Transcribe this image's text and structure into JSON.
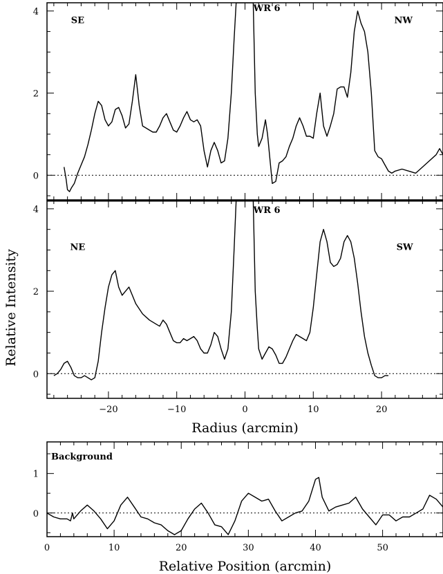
{
  "chart_data": [
    {
      "type": "line",
      "id": "top",
      "xlim": [
        -29,
        29
      ],
      "ylim": [
        -0.6,
        4.2
      ],
      "yticks_major": [
        0,
        2,
        4
      ],
      "xticks_labeled": false,
      "zero_line": true,
      "annotations": [
        {
          "text": "SE",
          "x": -24.5,
          "y": 3.7
        },
        {
          "text": "WR 6",
          "x": 3.2,
          "y": 4.0
        },
        {
          "text": "NW",
          "x": 23.2,
          "y": 3.7
        }
      ],
      "series": [
        {
          "x": [
            -26.5,
            -26.2,
            -26.0,
            -25.7,
            -25.4,
            -25.0,
            -24.5,
            -24.0,
            -23.5,
            -23.0,
            -22.5,
            -22.0,
            -21.5,
            -21.0,
            -20.5,
            -20.0,
            -19.5,
            -19.0,
            -18.5,
            -18.0,
            -17.5,
            -17.0,
            -16.5,
            -16.0,
            -15.5,
            -15.0,
            -14.5,
            -14.0,
            -13.5,
            -13.0,
            -12.5,
            -12.0,
            -11.5,
            -11.0,
            -10.5,
            -10.0,
            -9.5,
            -9.0,
            -8.5,
            -8.0,
            -7.5,
            -7.0,
            -6.5,
            -6.0,
            -5.5,
            -5.0,
            -4.5,
            -4.0,
            -3.5,
            -3.0,
            -2.5,
            -2.0,
            -1.6,
            -1.3,
            -1.0,
            -0.8,
            -0.6,
            1.0,
            1.2,
            1.5,
            1.8,
            2.0,
            2.5,
            3.0,
            3.3,
            3.7,
            4.0,
            4.5,
            5.0,
            5.5,
            6.0,
            6.5,
            7.0,
            7.5,
            8.0,
            8.5,
            9.0,
            9.5,
            10.0,
            10.5,
            11.0,
            11.5,
            12.0,
            12.5,
            13.0,
            13.5,
            14.0,
            14.5,
            15.0,
            15.5,
            16.0,
            16.5,
            17.0,
            17.5,
            18.0,
            18.5,
            19.0,
            19.5,
            20.0,
            20.5,
            21.0,
            21.5,
            22.0,
            23.0,
            24.0,
            25.0,
            26.0,
            27.0,
            28.0,
            28.5,
            29.0
          ],
          "values": [
            0.2,
            -0.1,
            -0.35,
            -0.4,
            -0.3,
            -0.2,
            0.05,
            0.25,
            0.45,
            0.75,
            1.1,
            1.5,
            1.8,
            1.7,
            1.35,
            1.2,
            1.3,
            1.6,
            1.65,
            1.45,
            1.15,
            1.25,
            1.8,
            2.45,
            1.7,
            1.2,
            1.15,
            1.1,
            1.05,
            1.05,
            1.2,
            1.4,
            1.5,
            1.3,
            1.1,
            1.05,
            1.2,
            1.4,
            1.55,
            1.35,
            1.3,
            1.35,
            1.2,
            0.6,
            0.2,
            0.6,
            0.8,
            0.6,
            0.3,
            0.35,
            0.9,
            2.0,
            3.3,
            4.2,
            4.2,
            4.2,
            4.2,
            4.2,
            4.2,
            2.0,
            1.0,
            0.7,
            0.9,
            1.35,
            1.0,
            0.3,
            -0.2,
            -0.15,
            0.3,
            0.35,
            0.45,
            0.7,
            0.9,
            1.2,
            1.4,
            1.2,
            0.95,
            0.95,
            0.9,
            1.5,
            2.0,
            1.2,
            0.95,
            1.2,
            1.5,
            2.1,
            2.15,
            2.15,
            1.9,
            2.5,
            3.5,
            4.0,
            3.7,
            3.5,
            3.0,
            2.0,
            0.6,
            0.45,
            0.4,
            0.25,
            0.1,
            0.05,
            0.1,
            0.15,
            0.1,
            0.05,
            0.2,
            0.35,
            0.5,
            0.65,
            0.5
          ]
        }
      ]
    },
    {
      "type": "line",
      "id": "middle",
      "xlim": [
        -29,
        29
      ],
      "ylim": [
        -0.6,
        4.2
      ],
      "xticks": [
        -20,
        -10,
        0,
        10,
        20
      ],
      "yticks_major": [
        0,
        2,
        4
      ],
      "xticks_labeled": true,
      "zero_line": true,
      "xlabel": "Radius (arcmin)",
      "annotations": [
        {
          "text": "NE",
          "x": -24.5,
          "y": 3.0
        },
        {
          "text": "WR 6",
          "x": 3.2,
          "y": 3.9
        },
        {
          "text": "SW",
          "x": 23.4,
          "y": 3.0
        }
      ],
      "series": [
        {
          "x": [
            -28.0,
            -27.5,
            -27.0,
            -26.5,
            -26.0,
            -25.5,
            -25.0,
            -24.5,
            -24.0,
            -23.5,
            -23.0,
            -22.5,
            -22.0,
            -21.5,
            -21.0,
            -20.5,
            -20.0,
            -19.5,
            -19.0,
            -18.5,
            -18.0,
            -17.5,
            -17.0,
            -16.5,
            -16.0,
            -15.0,
            -14.0,
            -13.0,
            -12.5,
            -12.0,
            -11.5,
            -11.0,
            -10.5,
            -10.0,
            -9.5,
            -9.0,
            -8.5,
            -8.0,
            -7.5,
            -7.0,
            -6.5,
            -6.0,
            -5.5,
            -5.0,
            -4.5,
            -4.0,
            -3.5,
            -3.0,
            -2.5,
            -2.0,
            -1.6,
            -1.3,
            -1.0,
            -0.8,
            -0.6,
            1.0,
            1.2,
            1.5,
            1.8,
            2.0,
            2.5,
            3.0,
            3.5,
            4.0,
            4.5,
            5.0,
            5.5,
            6.0,
            6.5,
            7.0,
            7.5,
            8.0,
            8.5,
            9.0,
            9.5,
            10.0,
            10.5,
            11.0,
            11.5,
            12.0,
            12.5,
            13.0,
            13.5,
            14.0,
            14.5,
            15.0,
            15.5,
            16.0,
            16.5,
            17.0,
            17.5,
            18.0,
            18.5,
            19.0,
            19.5,
            20.0,
            20.5,
            21.0
          ],
          "values": [
            -0.05,
            0.0,
            0.1,
            0.25,
            0.3,
            0.15,
            -0.05,
            -0.1,
            -0.1,
            -0.05,
            -0.1,
            -0.15,
            -0.1,
            0.3,
            1.0,
            1.6,
            2.1,
            2.4,
            2.5,
            2.1,
            1.9,
            2.0,
            2.1,
            1.9,
            1.7,
            1.45,
            1.3,
            1.2,
            1.15,
            1.3,
            1.2,
            1.0,
            0.8,
            0.75,
            0.75,
            0.85,
            0.8,
            0.85,
            0.9,
            0.8,
            0.6,
            0.5,
            0.5,
            0.7,
            1.0,
            0.9,
            0.6,
            0.35,
            0.6,
            1.5,
            3.0,
            4.2,
            4.2,
            4.2,
            4.2,
            4.2,
            4.2,
            2.0,
            1.1,
            0.6,
            0.35,
            0.5,
            0.65,
            0.6,
            0.45,
            0.25,
            0.25,
            0.4,
            0.6,
            0.8,
            0.95,
            0.9,
            0.85,
            0.8,
            1.0,
            1.6,
            2.4,
            3.2,
            3.5,
            3.2,
            2.7,
            2.6,
            2.65,
            2.8,
            3.2,
            3.35,
            3.2,
            2.8,
            2.2,
            1.5,
            0.9,
            0.5,
            0.2,
            -0.05,
            -0.1,
            -0.1,
            -0.05,
            -0.05
          ]
        }
      ]
    },
    {
      "type": "line",
      "id": "bottom",
      "xlim": [
        0,
        59
      ],
      "ylim": [
        -0.6,
        1.8
      ],
      "xticks": [
        0,
        10,
        20,
        30,
        40,
        50
      ],
      "yticks_major": [
        0,
        1
      ],
      "xticks_labeled": true,
      "zero_line": true,
      "xlabel": "Relative Position (arcmin)",
      "annotations": [
        {
          "text": "Background",
          "x": 5.2,
          "y": 1.35
        }
      ],
      "series": [
        {
          "x": [
            0,
            1,
            2,
            3,
            3.5,
            3.8,
            4,
            5,
            6,
            7,
            8,
            9,
            10,
            11,
            12,
            13,
            14,
            15,
            16,
            17,
            18,
            19,
            20,
            21,
            22,
            23,
            24,
            25,
            26,
            27,
            28,
            29,
            30,
            31,
            32,
            33,
            34,
            35,
            36,
            37,
            38,
            39,
            40,
            40.5,
            41,
            42,
            43,
            44,
            45,
            46,
            47,
            48,
            49,
            50,
            51,
            52,
            53,
            54,
            55,
            56,
            57,
            58,
            59
          ],
          "values": [
            0.0,
            -0.1,
            -0.15,
            -0.15,
            -0.2,
            0.0,
            -0.15,
            0.05,
            0.2,
            0.05,
            -0.15,
            -0.4,
            -0.2,
            0.2,
            0.4,
            0.15,
            -0.1,
            -0.15,
            -0.25,
            -0.3,
            -0.45,
            -0.55,
            -0.45,
            -0.15,
            0.1,
            0.25,
            0.0,
            -0.3,
            -0.35,
            -0.55,
            -0.2,
            0.3,
            0.5,
            0.4,
            0.3,
            0.35,
            0.05,
            -0.2,
            -0.1,
            0.0,
            0.05,
            0.3,
            0.85,
            0.9,
            0.4,
            0.05,
            0.15,
            0.2,
            0.25,
            0.4,
            0.1,
            -0.1,
            -0.3,
            -0.05,
            -0.05,
            -0.2,
            -0.1,
            -0.1,
            0.0,
            0.1,
            0.45,
            0.35,
            0.15
          ]
        }
      ]
    }
  ],
  "shared": {
    "ylabel": "Relative Intensity"
  }
}
